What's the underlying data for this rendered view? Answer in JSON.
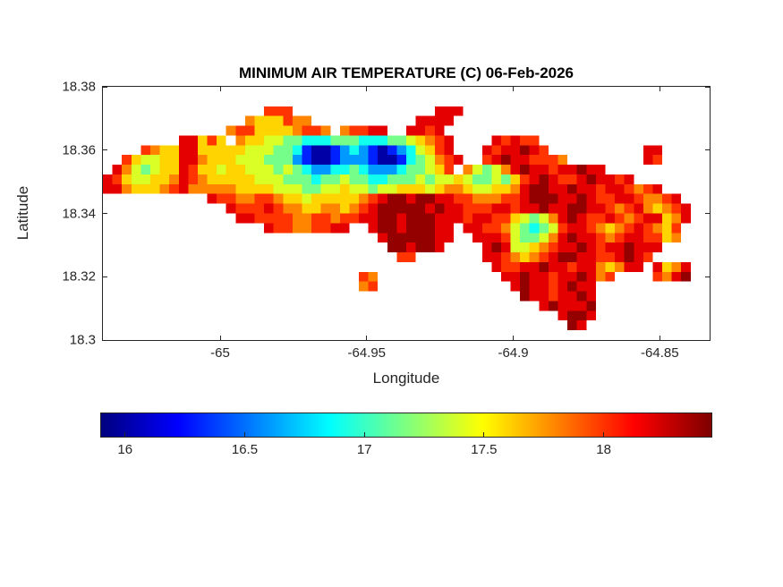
{
  "chart_data": {
    "type": "heatmap",
    "title": "MINIMUM AIR TEMPERATURE (C) 06-Feb-2026",
    "xlabel": "Longitude",
    "ylabel": "Latitude",
    "x_range": [
      -65.04,
      -64.833
    ],
    "y_range": [
      18.3,
      18.38
    ],
    "x_ticks": [
      -65,
      -64.95,
      -64.9,
      -64.85
    ],
    "x_tick_labels": [
      "-65",
      "-64.95",
      "-64.9",
      "-64.85"
    ],
    "y_ticks": [
      18.38,
      18.36,
      18.34,
      18.32,
      18.3
    ],
    "y_tick_labels": [
      "18.38",
      "18.36",
      "18.34",
      "18.32",
      "18.3"
    ],
    "colormap": "jet",
    "grid_lines": false,
    "colorbar": {
      "orientation": "horizontal",
      "min": 15.9,
      "max": 18.45,
      "ticks": [
        16,
        16.5,
        17,
        17.5,
        18
      ],
      "tick_labels": [
        "16",
        "16.5",
        "17",
        "17.5",
        "18"
      ]
    },
    "grid": {
      "cols": 64,
      "rows": 26,
      "lon_west": -65.04,
      "lon_east": -64.833,
      "lat_north": 18.38,
      "lat_south": 18.3,
      "nodata_char": ".",
      "value_map": {
        ".": null,
        "0": 16.0,
        "1": 16.3,
        "2": 16.6,
        "3": 16.9,
        "4": 17.15,
        "5": 17.4,
        "6": 17.6,
        "7": 17.8,
        "8": 18.0,
        "9": 18.2,
        "A": 18.4
      },
      "cells": [
        {
          "row": 2,
          "segments": [
            [
              17,
              "888"
            ],
            [
              35,
              "999"
            ]
          ]
        },
        {
          "row": 3,
          "segments": [
            [
              15,
              "7666877"
            ],
            [
              33,
              "9999"
            ]
          ]
        },
        {
          "row": 4,
          "segments": [
            [
              13,
              "78866667887"
            ],
            [
              25,
              "78899"
            ],
            [
              32,
              "9989"
            ]
          ]
        },
        {
          "row": 5,
          "segments": [
            [
              8,
              "99"
            ],
            [
              10,
              "686"
            ],
            [
              14,
              "76655443334443334456789"
            ],
            [
              41,
              "98988"
            ]
          ]
        },
        {
          "row": 6,
          "segments": [
            [
              4,
              "876699666665554431001232101235689"
            ],
            [
              40,
              "9899A98"
            ],
            [
              57,
              "99"
            ]
          ]
        },
        {
          "row": 7,
          "segments": [
            [
              2,
              "865566997666555444210012221001345789"
            ],
            [
              40,
              "89A998887"
            ],
            [
              57,
              "98"
            ]
          ]
        },
        {
          "row": 8,
          "segments": [
            [
              1,
              "975456698665665554543223343222344568"
            ],
            [
              38,
              "754579A99899A99"
            ]
          ]
        },
        {
          "row": 9,
          "segments": [
            [
              0,
              "9865566798766666555444344544334445455654454689A9889A9989"
            ]
          ]
        },
        {
          "row": 10,
          "segments": [
            [
              0,
              "997666789777776666555445565545566656776556679AA99A998998789"
            ]
          ]
        },
        {
          "row": 11,
          "segments": [
            [
              11,
              "9887788766566666789AA9AA9988777889AAA99A9889987789"
            ]
          ]
        },
        {
          "row": 12,
          "segments": [
            [
              13,
              "9888987766776789AAAAA9A9988899899A99AA99878976789"
            ]
          ]
        },
        {
          "row": 13,
          "segments": [
            [
              14,
              "998888778878899AA9AAA99989988654579A988987899679"
            ]
          ]
        },
        {
          "row": 14,
          "segments": [
            [
              17,
              "988778899"
            ],
            [
              28,
              "9AA9AAA99"
            ],
            [
              38,
              "99887543458998767898768"
            ]
          ]
        },
        {
          "row": 15,
          "segments": [
            [
              29,
              "9AAAAA99"
            ],
            [
              39,
              "9998544579A99878998867"
            ]
          ]
        },
        {
          "row": 16,
          "segments": [
            [
              30,
              "AA9AA9"
            ],
            [
              40,
              "9A95567899A9899A999"
            ]
          ]
        },
        {
          "row": 17,
          "segments": [
            [
              31,
              "88"
            ],
            [
              40,
              "99876789AA99889A98"
            ]
          ]
        },
        {
          "row": 18,
          "segments": [
            [
              41,
              "98899A9989976799"
            ],
            [
              58,
              "9679"
            ]
          ]
        },
        {
          "row": 19,
          "segments": [
            [
              27,
              "87"
            ],
            [
              42,
              "99A99899A978"
            ],
            [
              58,
              "879A"
            ]
          ]
        },
        {
          "row": 20,
          "segments": [
            [
              27,
              "78"
            ],
            [
              43,
              "9A9989A99"
            ]
          ]
        },
        {
          "row": 21,
          "segments": [
            [
              44,
              "A99899A9"
            ]
          ]
        },
        {
          "row": 22,
          "segments": [
            [
              46,
              "9A999A"
            ]
          ]
        },
        {
          "row": 23,
          "segments": [
            [
              48,
              "9AA9"
            ]
          ]
        },
        {
          "row": 24,
          "segments": [
            [
              49,
              "A9"
            ]
          ]
        }
      ]
    }
  }
}
